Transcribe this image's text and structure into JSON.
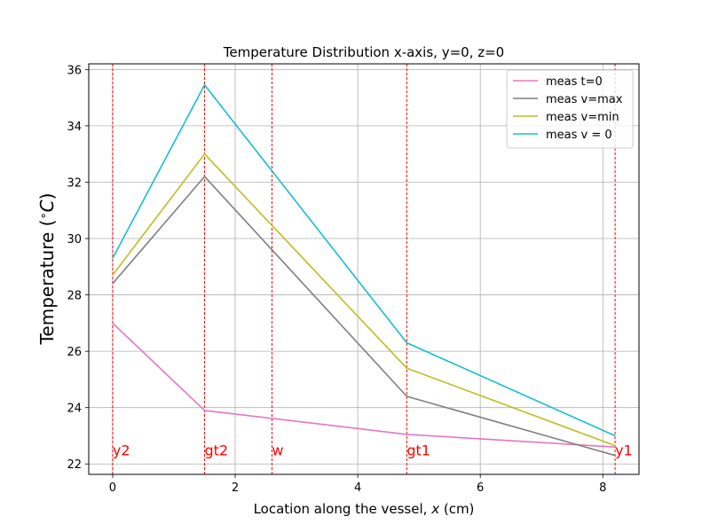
{
  "chart_data": {
    "type": "line",
    "title": "Temperature Distribution x-axis, y=0, z=0",
    "xlabel": "Location along the vessel, $x$ (cm)",
    "ylabel": "Temperature ($^{\\circ}C$)",
    "xlabel_display": {
      "pre": "Location along the vessel, ",
      "var": "x",
      "post": " (cm)"
    },
    "ylabel_display": {
      "pre": "Temperature (",
      "deg": "∘",
      "var": "C",
      "post": ")"
    },
    "xlim": [
      -0.39,
      8.59
    ],
    "ylim": [
      21.63,
      36.2
    ],
    "xticks": [
      0,
      2,
      4,
      6,
      8
    ],
    "yticks": [
      22,
      24,
      26,
      28,
      30,
      32,
      34,
      36
    ],
    "grid": true,
    "legend_position": "top-right",
    "x": [
      0,
      1.5,
      2.6,
      4.8,
      8.2
    ],
    "series": [
      {
        "name": "meas t=0",
        "color": "#e377c2",
        "values": [
          27.0,
          23.9,
          null,
          23.05,
          22.6
        ]
      },
      {
        "name": "meas v=max",
        "color": "#7f7f7f",
        "values": [
          28.4,
          32.2,
          null,
          24.4,
          22.3
        ]
      },
      {
        "name": "meas v=min",
        "color": "#bcbd22",
        "values": [
          28.7,
          33.0,
          null,
          25.4,
          22.65
        ]
      },
      {
        "name": "meas v = 0",
        "color": "#17becf",
        "values": [
          29.3,
          35.45,
          null,
          26.3,
          23.0
        ]
      }
    ],
    "annotations": [
      {
        "label": "y2",
        "x": 0,
        "color": "#ff0000"
      },
      {
        "label": "gt2",
        "x": 1.5,
        "color": "#ff0000"
      },
      {
        "label": "w",
        "x": 2.6,
        "color": "#ff0000"
      },
      {
        "label": "gt1",
        "x": 4.8,
        "color": "#ff0000"
      },
      {
        "label": "y1",
        "x": 8.2,
        "color": "#ff0000"
      }
    ],
    "annotation_y": 22.5
  }
}
